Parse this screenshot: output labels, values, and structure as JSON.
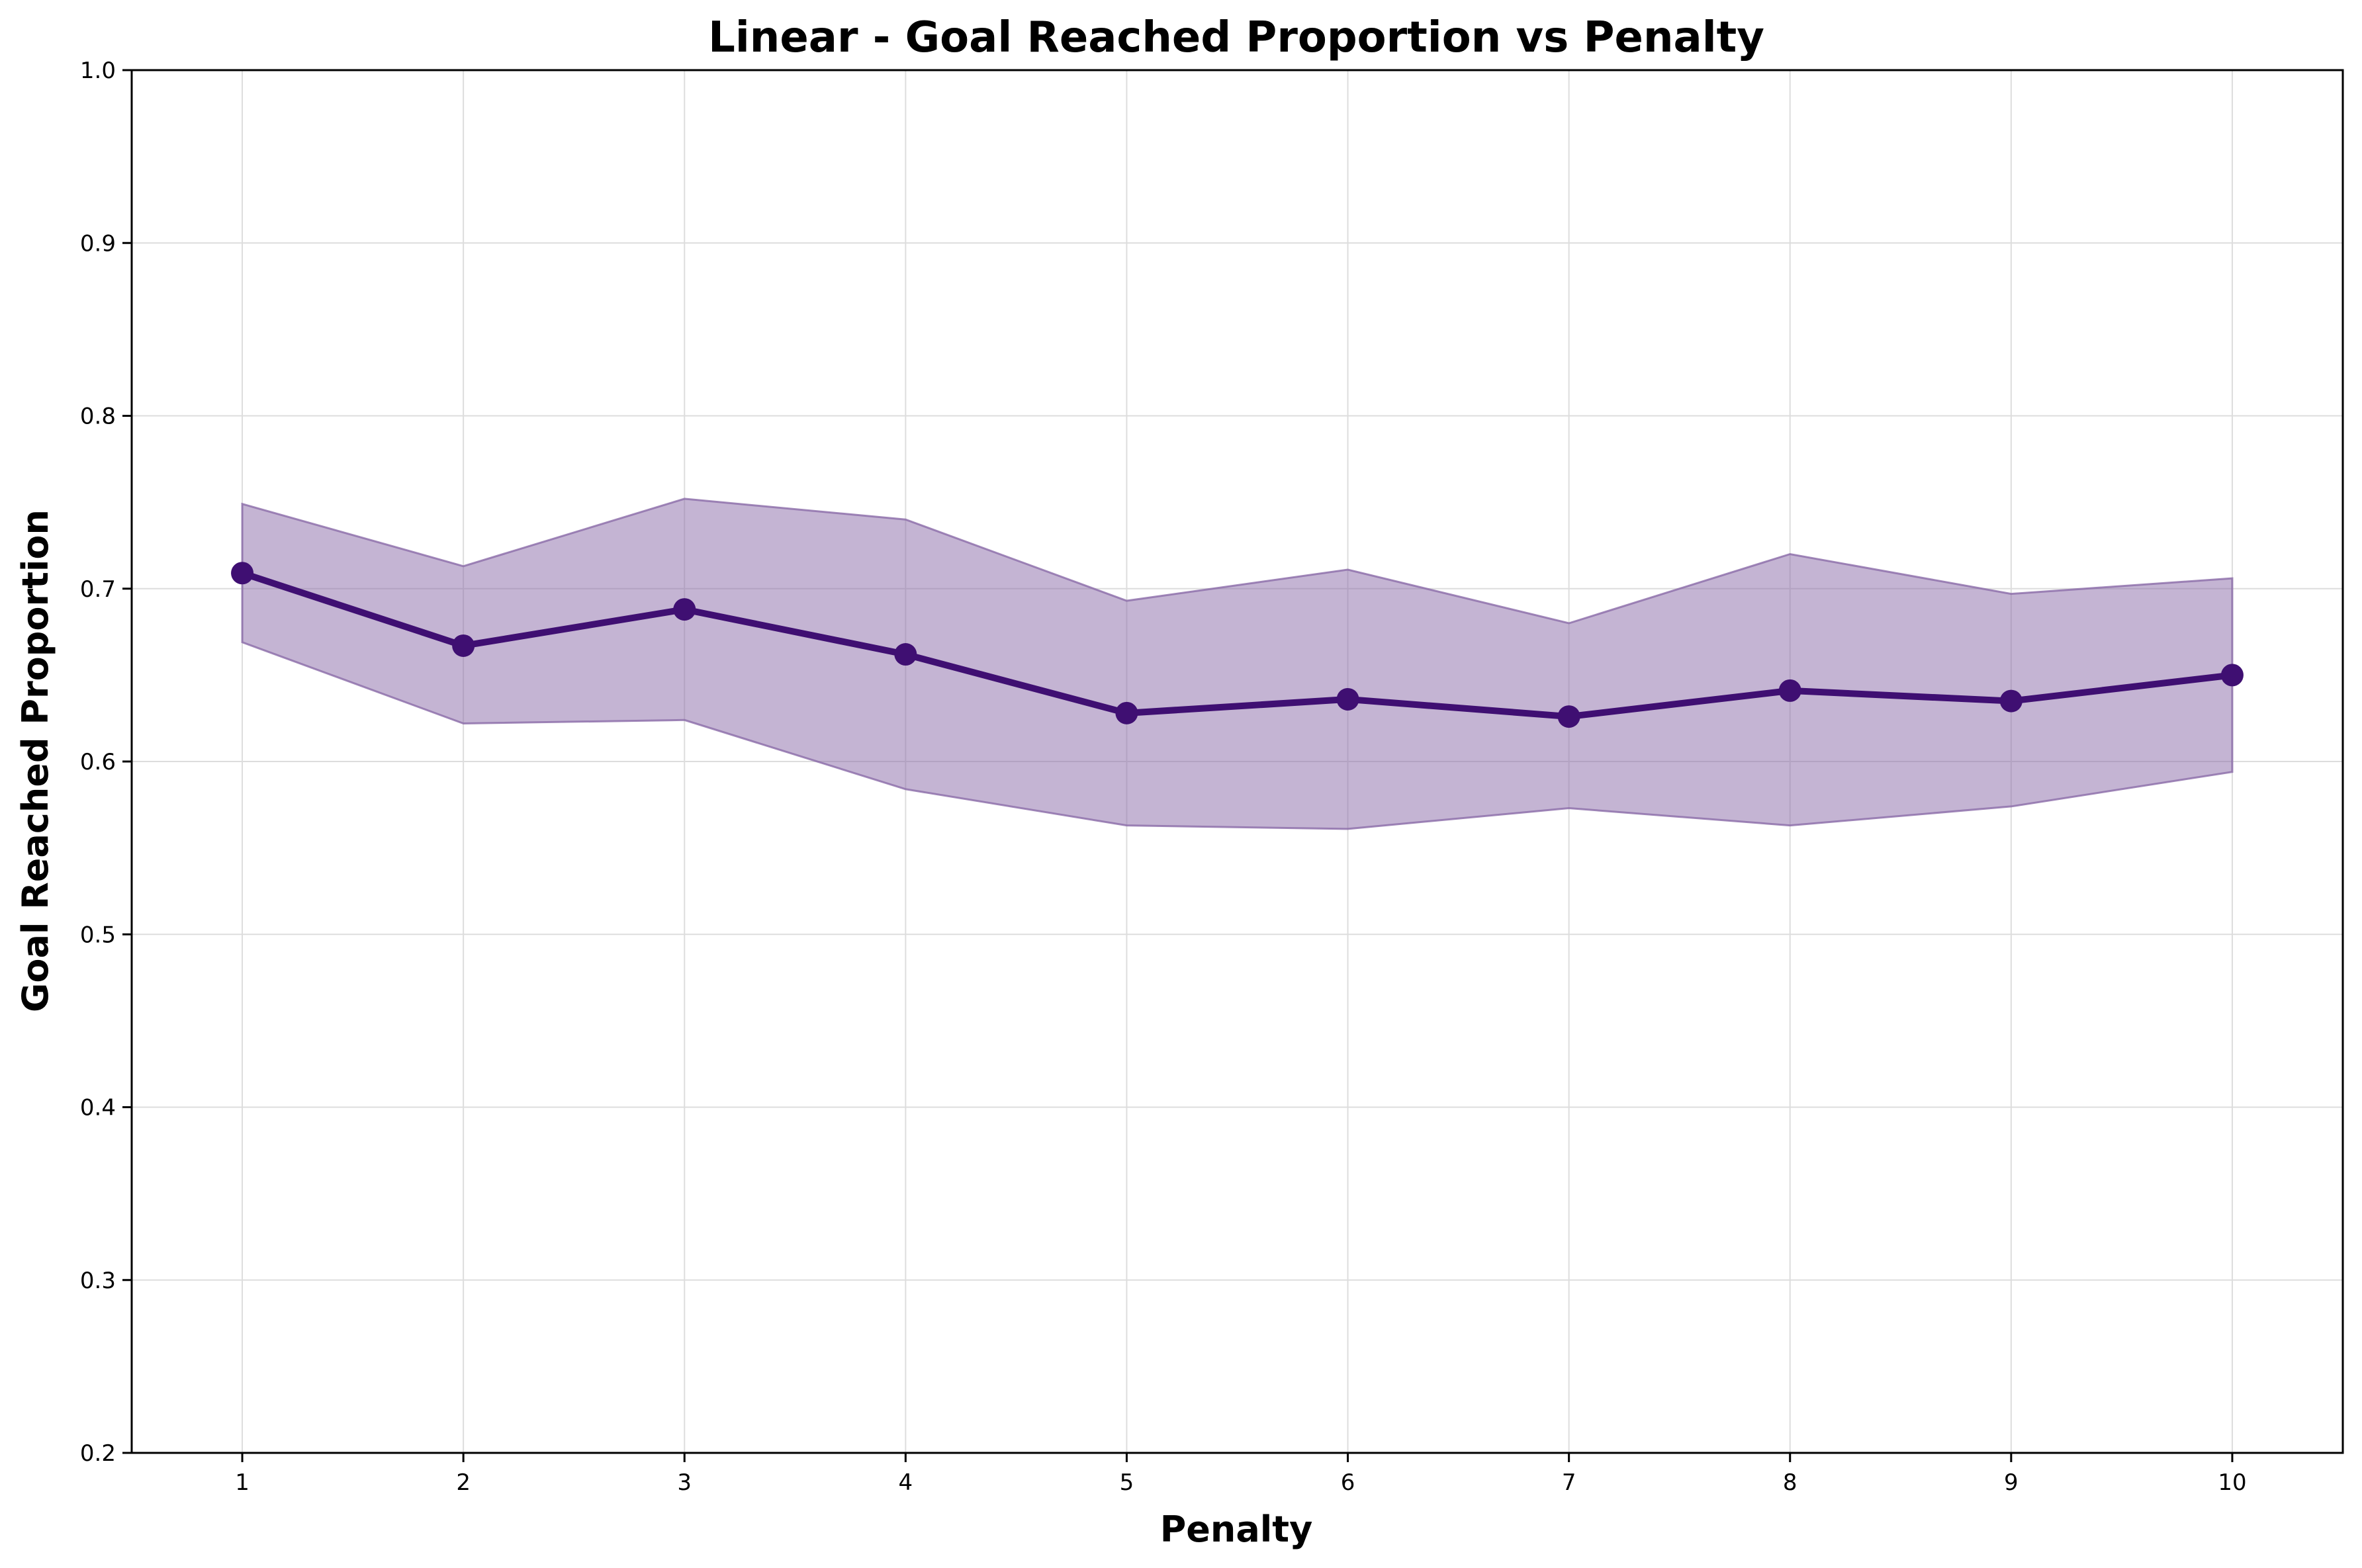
{
  "chart_data": {
    "type": "line",
    "title": "Linear - Goal Reached Proportion vs Penalty",
    "xlabel": "Penalty",
    "ylabel": "Goal Reached Proportion",
    "x": [
      1,
      2,
      3,
      4,
      5,
      6,
      7,
      8,
      9,
      10
    ],
    "series": [
      {
        "values": [
          0.709,
          0.667,
          0.688,
          0.662,
          0.628,
          0.636,
          0.626,
          0.641,
          0.635,
          0.65
        ],
        "lower": [
          0.669,
          0.622,
          0.624,
          0.584,
          0.563,
          0.561,
          0.573,
          0.563,
          0.574,
          0.594
        ],
        "upper": [
          0.749,
          0.713,
          0.752,
          0.74,
          0.693,
          0.711,
          0.68,
          0.72,
          0.697,
          0.706
        ],
        "color": "#3f0f72",
        "band_color": "#8a6aa8"
      }
    ],
    "xticks": [
      "1",
      "2",
      "3",
      "4",
      "5",
      "6",
      "7",
      "8",
      "9",
      "10"
    ],
    "yticks": [
      "0.2",
      "0.3",
      "0.4",
      "0.5",
      "0.6",
      "0.7",
      "0.8",
      "0.9",
      "1.0"
    ],
    "ylim": [
      0.2,
      1.0
    ],
    "xlim": [
      0.5,
      10.5
    ],
    "grid": true
  }
}
